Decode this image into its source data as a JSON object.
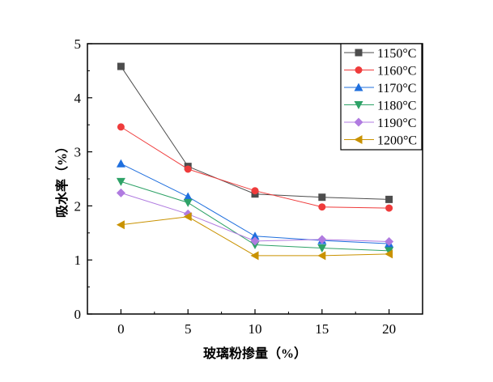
{
  "chart_data": {
    "type": "line",
    "title": "",
    "xlabel": "玻璃粉掺量（%）",
    "ylabel": "吸水率（%）",
    "xlim": [
      -2.5,
      22.5
    ],
    "ylim": [
      0,
      5
    ],
    "xticks": [
      0,
      5,
      10,
      15,
      20
    ],
    "yticks": [
      0,
      1,
      2,
      3,
      4,
      5
    ],
    "x": [
      0,
      5,
      10,
      15,
      20
    ],
    "legend_position": "top-right",
    "grid": false,
    "series": [
      {
        "name": "1150°C",
        "color": "#4d4d4d",
        "marker": "square",
        "values": [
          4.58,
          2.73,
          2.22,
          2.16,
          2.12
        ]
      },
      {
        "name": "1160°C",
        "color": "#ef3b3b",
        "marker": "circle",
        "values": [
          3.46,
          2.68,
          2.28,
          1.98,
          1.96
        ]
      },
      {
        "name": "1170°C",
        "color": "#1f6fde",
        "marker": "triangle-up",
        "values": [
          2.78,
          2.17,
          1.44,
          1.36,
          1.3
        ]
      },
      {
        "name": "1180°C",
        "color": "#2ea267",
        "marker": "triangle-down",
        "values": [
          2.45,
          2.06,
          1.28,
          1.22,
          1.17
        ]
      },
      {
        "name": "1190°C",
        "color": "#b07be0",
        "marker": "diamond",
        "values": [
          2.24,
          1.85,
          1.35,
          1.38,
          1.34
        ]
      },
      {
        "name": "1200°C",
        "color": "#c99200",
        "marker": "triangle-left",
        "values": [
          1.65,
          1.8,
          1.08,
          1.08,
          1.11
        ]
      }
    ]
  }
}
